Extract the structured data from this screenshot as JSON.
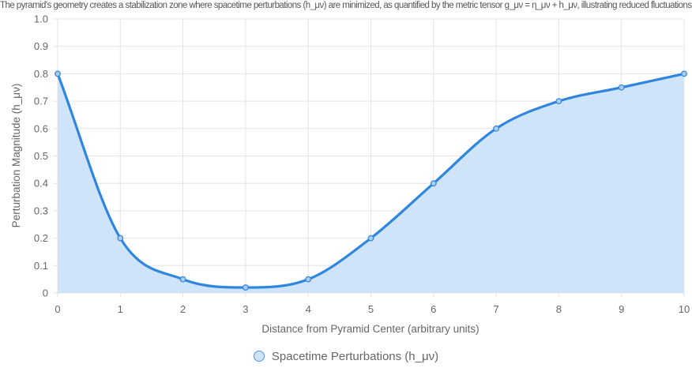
{
  "chart_data": {
    "type": "area",
    "title": "The pyramid's geometry creates a stabilization zone where spacetime perturbations (h_μν) are minimized, as quantified by the metric tensor g_μν = η_μν + h_μν, illustrating reduced fluctuations near the structure",
    "xlabel": "Distance from Pyramid Center (arbitrary units)",
    "ylabel": "Perturbation Magnitude (h_μν)",
    "categories": [
      "0",
      "1",
      "2",
      "3",
      "4",
      "5",
      "6",
      "7",
      "8",
      "9",
      "10"
    ],
    "yticks": [
      "0",
      "0.1",
      "0.2",
      "0.3",
      "0.4",
      "0.5",
      "0.6",
      "0.7",
      "0.8",
      "0.9",
      "1.0"
    ],
    "ylim": [
      0,
      1.0
    ],
    "grid": true,
    "legend_position": "bottom",
    "series": [
      {
        "name": "Spacetime Perturbations (h_μν)",
        "values": [
          0.8,
          0.2,
          0.05,
          0.02,
          0.05,
          0.2,
          0.4,
          0.6,
          0.7,
          0.75,
          0.8
        ],
        "line_color": "#2f86de",
        "fill_color": "#cfe3f9"
      }
    ]
  }
}
